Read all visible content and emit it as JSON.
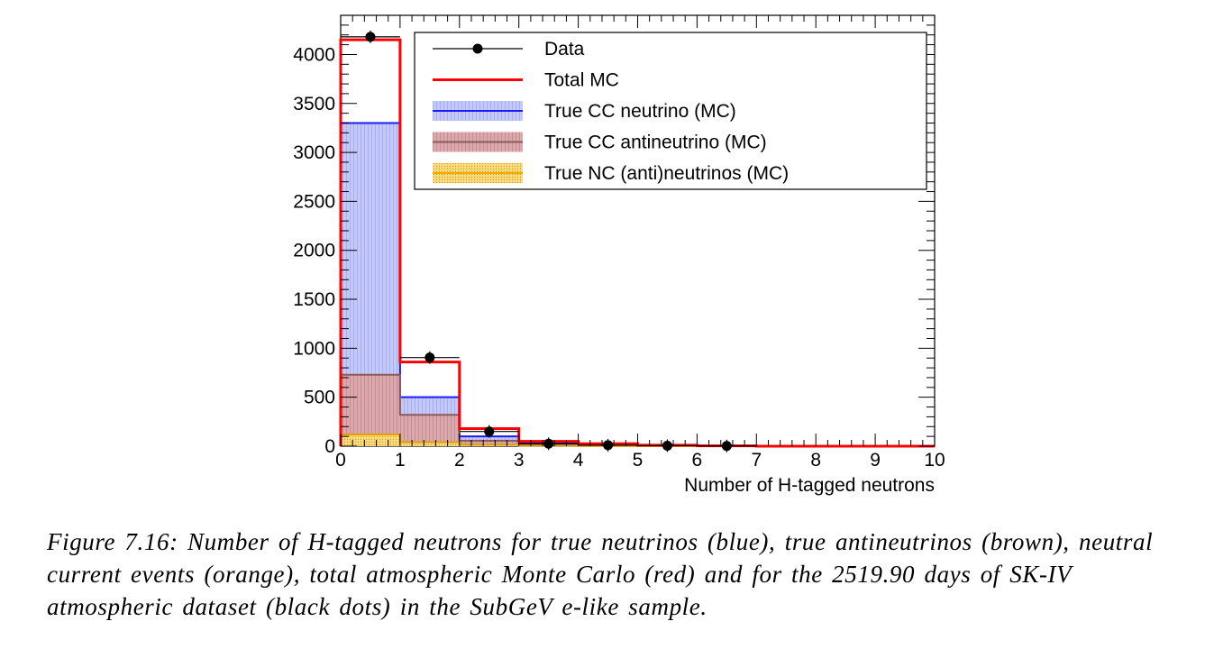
{
  "chart_data": {
    "type": "bar",
    "xlabel": "Number of H-tagged neutrons",
    "ylabel": "",
    "xlim": [
      0,
      10
    ],
    "ylim": [
      0,
      4400
    ],
    "x_ticks": [
      "0",
      "1",
      "2",
      "3",
      "4",
      "5",
      "6",
      "7",
      "8",
      "9",
      "10"
    ],
    "y_ticks": [
      "0",
      "500",
      "1000",
      "1500",
      "2000",
      "2500",
      "3000",
      "3500",
      "4000"
    ],
    "bin_edges": [
      0,
      1,
      2,
      3,
      4,
      5,
      6,
      7,
      8,
      9,
      10
    ],
    "legend": {
      "position": "top-right",
      "entries": [
        {
          "label": "Data",
          "color": "#000000",
          "style": "marker"
        },
        {
          "label": "Total MC",
          "color": "#ff0000",
          "style": "line"
        },
        {
          "label": "True CC neutrino (MC)",
          "color": "#1a1aff",
          "style": "fill"
        },
        {
          "label": "True CC antineutrino (MC)",
          "color": "#8b5a5a",
          "style": "fill"
        },
        {
          "label": "True NC (anti)neutrinos (MC)",
          "color": "#f2a900",
          "style": "fill"
        }
      ]
    },
    "series": [
      {
        "name": "True CC neutrino (MC)",
        "kind": "hist-fill",
        "color": "#1a1aff",
        "fill": "#b3b9f5",
        "values": [
          3300,
          500,
          100,
          30,
          10,
          5,
          2,
          0,
          0,
          0
        ]
      },
      {
        "name": "True CC antineutrino (MC)",
        "kind": "hist-fill",
        "color": "#8b5a5a",
        "fill": "#d4a3a8",
        "values": [
          730,
          320,
          55,
          15,
          5,
          2,
          1,
          0,
          0,
          0
        ]
      },
      {
        "name": "True NC (anti)neutrinos (MC)",
        "kind": "hist-fill",
        "color": "#e0a000",
        "fill": "#f7d070",
        "values": [
          120,
          40,
          15,
          5,
          2,
          1,
          0,
          0,
          0,
          0
        ]
      },
      {
        "name": "Total MC",
        "kind": "hist-line",
        "color": "#ff0000",
        "values": [
          4150,
          860,
          180,
          50,
          25,
          10,
          3,
          0,
          0,
          0
        ]
      },
      {
        "name": "Data",
        "kind": "points",
        "color": "#000000",
        "x": [
          0.5,
          1.5,
          2.5,
          3.5,
          4.5,
          5.5,
          6.5
        ],
        "values": [
          4180,
          905,
          150,
          25,
          10,
          5,
          2
        ]
      }
    ]
  },
  "caption": "Figure 7.16: Number of H-tagged neutrons for true neutrinos (blue), true antineutrinos (brown), neutral current events (orange), total atmospheric Monte Carlo (red) and for the 2519.90 days of SK-IV atmospheric dataset (black dots) in the SubGeV e-like sample."
}
